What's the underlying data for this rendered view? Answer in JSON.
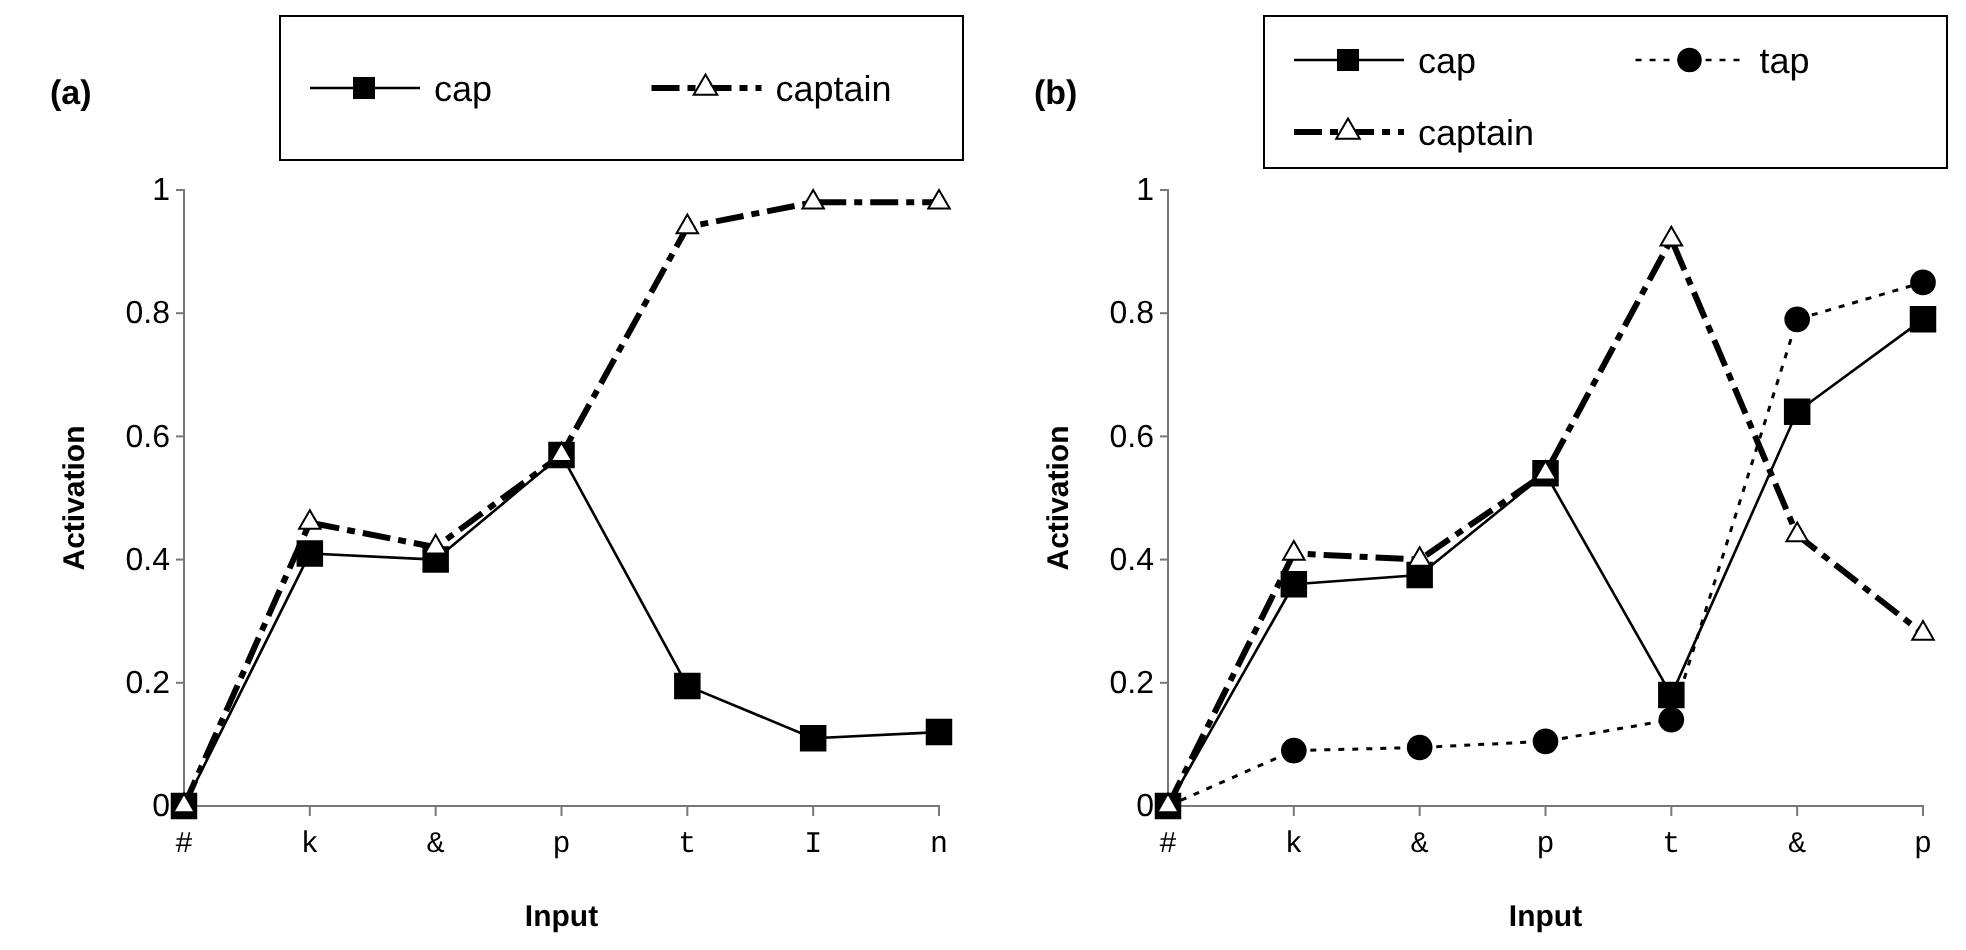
{
  "chart_data": [
    {
      "type": "line",
      "title": "(a)",
      "xlabel": "Input",
      "ylabel": "Activation",
      "categories": [
        "#",
        "k",
        "&",
        "p",
        "t",
        "I",
        "n"
      ],
      "series": [
        {
          "name": "cap",
          "color": "#000000",
          "marker": "square",
          "line_style": "solid",
          "values": [
            0,
            0.41,
            0.4,
            0.57,
            0.195,
            0.11,
            0.12
          ]
        },
        {
          "name": "captain",
          "color": "#000000",
          "marker": "triangle",
          "line_style": "dashed",
          "values": [
            0,
            0.46,
            0.42,
            0.57,
            0.94,
            0.98,
            0.98
          ]
        }
      ],
      "ylim": [
        0,
        1
      ],
      "yticks": [
        0,
        0.2,
        0.4,
        0.6,
        0.8,
        1
      ],
      "grid": false,
      "legend": "top"
    },
    {
      "type": "line",
      "title": "(b)",
      "xlabel": "Input",
      "ylabel": "Activation",
      "categories": [
        "#",
        "k",
        "&",
        "p",
        "t",
        "&",
        "p"
      ],
      "series": [
        {
          "name": "cap",
          "color": "#000000",
          "marker": "square",
          "line_style": "solid",
          "values": [
            0,
            0.36,
            0.375,
            0.54,
            0.18,
            0.64,
            0.79
          ]
        },
        {
          "name": "tap",
          "color": "#000000",
          "marker": "circle",
          "line_style": "dotted",
          "values": [
            0,
            0.09,
            0.095,
            0.105,
            0.14,
            0.79,
            0.85
          ]
        },
        {
          "name": "captain",
          "color": "#000000",
          "marker": "triangle",
          "line_style": "dashed",
          "values": [
            0,
            0.41,
            0.4,
            0.54,
            0.92,
            0.44,
            0.28
          ]
        }
      ],
      "ylim": [
        0,
        1
      ],
      "yticks": [
        0,
        0.2,
        0.4,
        0.6,
        0.8,
        1
      ],
      "grid": false,
      "legend": "top"
    }
  ]
}
